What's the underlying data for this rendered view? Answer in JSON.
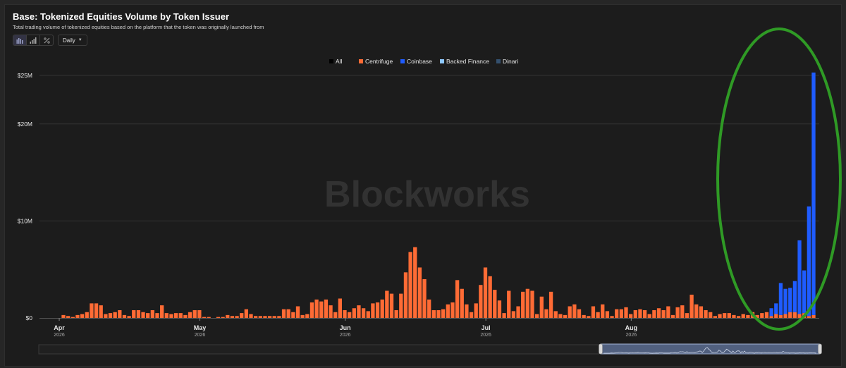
{
  "header": {
    "title": "Base: Tokenized Equities Volume by Token Issuer",
    "subtitle": "Total trading volume of tokenized equities based on the platform that the token was originally launched from"
  },
  "toolbar": {
    "chart_type_icons": [
      "bar-chart-icon",
      "column-chart-icon",
      "percent-icon"
    ],
    "interval": "Daily"
  },
  "watermark": "Blockworks",
  "chart_data": {
    "type": "bar",
    "stacked": true,
    "x_start": "2026-03-27",
    "y_ticks": [
      "$0",
      "$10M",
      "$20M",
      "$25M"
    ],
    "y_tick_values": [
      0,
      10,
      20,
      25
    ],
    "y_unit": "M USD",
    "ylim": [
      0,
      25.3
    ],
    "x_tick_labels": [
      {
        "month": "Apr",
        "year": "2026",
        "date": "2026-04-01"
      },
      {
        "month": "May",
        "year": "2026",
        "date": "2026-05-01"
      },
      {
        "month": "Jun",
        "year": "2026",
        "date": "2026-06-01"
      },
      {
        "month": "Jul",
        "year": "2026",
        "date": "2026-07-01"
      },
      {
        "month": "Aug",
        "year": "2026",
        "date": "2026-08-01"
      }
    ],
    "legend": [
      {
        "name": "All",
        "color": "#000000"
      },
      {
        "name": "Centrifuge",
        "color": "#ff6b35"
      },
      {
        "name": "Coinbase",
        "color": "#1f5cff"
      },
      {
        "name": "Backed Finance",
        "color": "#8ec8ff"
      },
      {
        "name": "Dinari",
        "color": "#34506e"
      }
    ],
    "legend_position": "top-center",
    "grid": true,
    "series": [
      {
        "name": "Centrifuge",
        "color": "#ff6b35",
        "values": [
          0,
          0,
          0,
          0,
          0,
          0,
          0.3,
          0.2,
          0.1,
          0.3,
          0.4,
          0.6,
          1.5,
          1.5,
          1.3,
          0.4,
          0.5,
          0.6,
          0.8,
          0.3,
          0.2,
          0.8,
          0.8,
          0.6,
          0.5,
          0.8,
          0.5,
          1.3,
          0.5,
          0.4,
          0.5,
          0.5,
          0.3,
          0.6,
          0.8,
          0.8,
          0.1,
          0.1,
          0,
          0.1,
          0.1,
          0.3,
          0.2,
          0.2,
          0.5,
          0.9,
          0.4,
          0.2,
          0.2,
          0.2,
          0.2,
          0.2,
          0.2,
          0.9,
          0.9,
          0.6,
          1.2,
          0.3,
          0.4,
          1.6,
          1.9,
          1.7,
          1.9,
          1.3,
          0.6,
          2.0,
          0.8,
          0.6,
          1.0,
          1.3,
          1.0,
          0.7,
          1.5,
          1.6,
          1.9,
          2.8,
          2.5,
          0.8,
          2.5,
          4.7,
          6.8,
          7.3,
          5.2,
          4.0,
          1.9,
          0.8,
          0.8,
          0.9,
          1.4,
          1.6,
          3.9,
          3.0,
          1.4,
          0.6,
          1.5,
          3.4,
          5.2,
          4.3,
          2.9,
          1.8,
          0.5,
          2.8,
          0.7,
          1.2,
          2.7,
          3.0,
          2.8,
          0.4,
          2.2,
          0.9,
          2.7,
          0.7,
          0.4,
          0.3,
          1.2,
          1.4,
          0.9,
          0.3,
          0.2,
          1.2,
          0.6,
          1.4,
          0.7,
          0.2,
          0.9,
          0.9,
          1.1,
          0.4,
          0.8,
          0.9,
          0.8,
          0.4,
          0.8,
          1.0,
          0.8,
          1.2,
          0.3,
          1.1,
          1.3,
          0.5,
          2.4,
          1.4,
          1.2,
          0.8,
          0.6,
          0.2,
          0.4,
          0.5,
          0.5,
          0.3,
          0.2,
          0.4,
          0.3,
          0.6,
          0.3,
          0.5,
          0.6,
          0.2,
          0.4,
          0.3,
          0.4,
          0.6,
          0.6,
          0.4,
          0.5,
          0.2,
          0.3
        ]
      },
      {
        "name": "Coinbase",
        "color": "#1f5cff",
        "values": [
          0,
          0,
          0,
          0,
          0,
          0,
          0,
          0,
          0,
          0,
          0,
          0,
          0,
          0,
          0,
          0,
          0,
          0,
          0,
          0,
          0,
          0,
          0,
          0,
          0,
          0,
          0,
          0,
          0,
          0,
          0,
          0,
          0,
          0,
          0,
          0,
          0,
          0,
          0,
          0,
          0,
          0,
          0,
          0,
          0,
          0,
          0,
          0,
          0,
          0,
          0,
          0,
          0,
          0,
          0,
          0,
          0,
          0,
          0,
          0,
          0,
          0,
          0,
          0,
          0,
          0,
          0,
          0,
          0,
          0,
          0,
          0,
          0,
          0,
          0,
          0,
          0,
          0,
          0,
          0,
          0,
          0,
          0,
          0,
          0,
          0,
          0,
          0,
          0,
          0,
          0,
          0,
          0,
          0,
          0,
          0,
          0,
          0,
          0,
          0,
          0,
          0,
          0,
          0,
          0,
          0,
          0,
          0,
          0,
          0,
          0,
          0,
          0,
          0,
          0,
          0,
          0,
          0,
          0,
          0,
          0,
          0,
          0,
          0,
          0,
          0,
          0,
          0,
          0,
          0,
          0,
          0,
          0,
          0,
          0,
          0,
          0,
          0,
          0,
          0,
          0,
          0,
          0,
          0,
          0,
          0,
          0,
          0,
          0,
          0,
          0,
          0,
          0,
          0,
          0,
          0,
          0,
          0.8,
          1.1,
          3.3,
          2.6,
          2.5,
          3.2,
          7.6,
          4.4,
          11.3,
          25.0
        ]
      }
    ]
  },
  "highlight_ellipse_color": "#2f9a25",
  "navigator": {
    "handle_icons": [
      "drag-handle-left-icon",
      "drag-handle-right-icon"
    ]
  }
}
